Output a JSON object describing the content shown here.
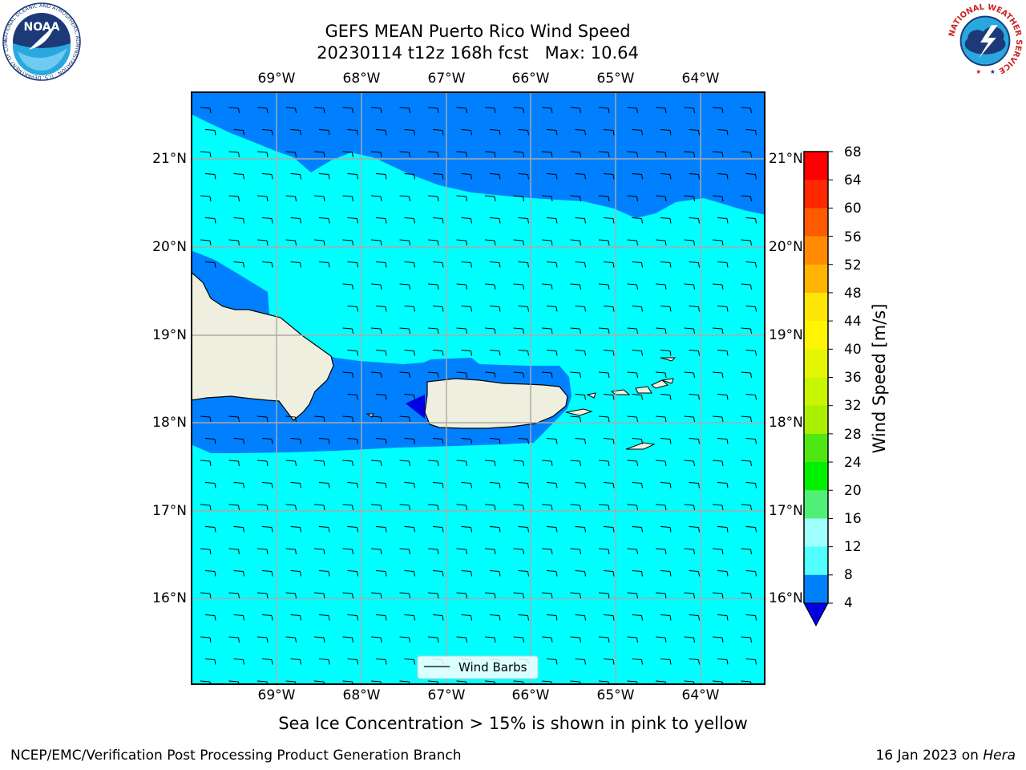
{
  "title": {
    "line1": "GEFS MEAN Puerto Rico Wind Speed",
    "line2": "20230114 t12z 168h fcst   Max: 10.64"
  },
  "map": {
    "lon_ticks": [
      "69°W",
      "68°W",
      "67°W",
      "66°W",
      "65°W",
      "64°W"
    ],
    "lat_ticks": [
      "21°N",
      "20°N",
      "19°N",
      "18°N",
      "17°N",
      "16°N"
    ],
    "legend_label": "Wind Barbs",
    "fill_colors": {
      "4_8": "#0080ff",
      "8_12": "#00ffff",
      "below_4": "#0000e0",
      "land": "#efefdf"
    }
  },
  "colorbar": {
    "label": "Wind Speed [m/s]",
    "ticks": [
      "68",
      "64",
      "60",
      "56",
      "52",
      "48",
      "44",
      "40",
      "36",
      "32",
      "28",
      "24",
      "20",
      "16",
      "12",
      "8",
      "4"
    ],
    "colors": [
      "#ff0000",
      "#ff2800",
      "#ff5a00",
      "#ff8c00",
      "#ffb400",
      "#ffe600",
      "#fff500",
      "#e6f500",
      "#c8f500",
      "#aaf000",
      "#50e614",
      "#00f000",
      "#50f078",
      "#a0ffff",
      "#50ffff",
      "#00ffff",
      "#0080ff"
    ],
    "under_color": "#0000e0"
  },
  "note": "Sea Ice Concentration > 15% is shown in pink to yellow",
  "footer": {
    "left": "NCEP/EMC/Verification Post Processing Product Generation Branch",
    "date": "16 Jan 2023 on ",
    "host": "Hera"
  },
  "logos": {
    "noaa_text": "NOAA",
    "noaa_ring": "NATIONAL OCEANIC AND ATMOSPHERIC ADMINISTRATION · U.S. DEPARTMENT OF COMMERCE",
    "nws_ring": "NATIONAL WEATHER SERVICE"
  }
}
